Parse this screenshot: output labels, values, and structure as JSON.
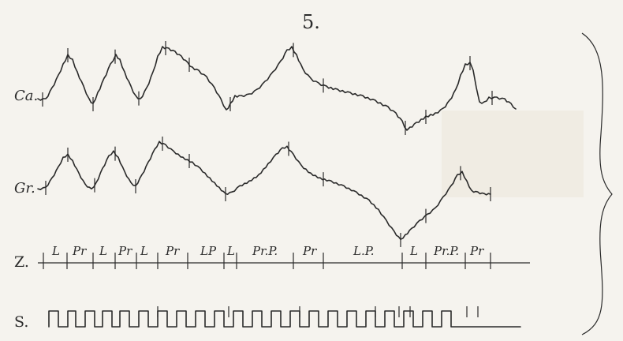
{
  "figure": {
    "number": "5."
  },
  "rows": {
    "ca_label": "Ca.",
    "gr_label": "Gr.",
    "z_label": "Z.",
    "s_label": "S."
  },
  "z_segments": [
    {
      "text": "L"
    },
    {
      "text": "Pr"
    },
    {
      "text": "L"
    },
    {
      "text": "Pr"
    },
    {
      "text": "L"
    },
    {
      "text": "Pr"
    },
    {
      "text": "LP"
    },
    {
      "text": "L"
    },
    {
      "text": "Pr.P."
    },
    {
      "text": "Pr"
    },
    {
      "text": "L.P."
    },
    {
      "text": "L"
    },
    {
      "text": "Pr.P."
    },
    {
      "text": "Pr"
    }
  ]
}
